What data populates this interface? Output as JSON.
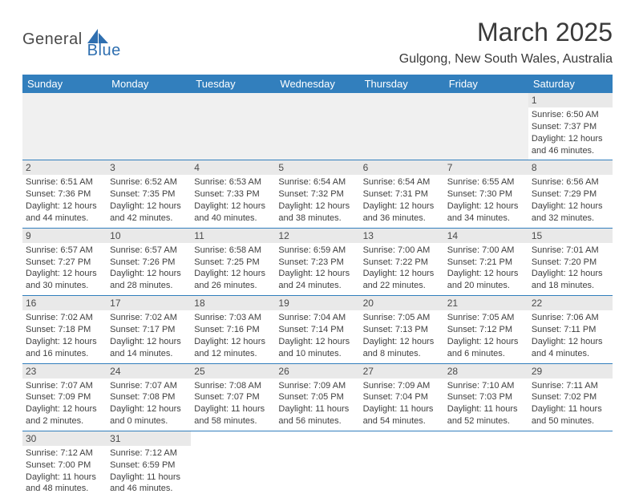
{
  "logo": {
    "t1": "General",
    "t2": "Blue"
  },
  "title": "March 2025",
  "location": "Gulgong, New South Wales, Australia",
  "colors": {
    "accent": "#327fbd",
    "band": "#e9e9e9",
    "blank": "#f0f0f0"
  },
  "dayHeaders": [
    "Sunday",
    "Monday",
    "Tuesday",
    "Wednesday",
    "Thursday",
    "Friday",
    "Saturday"
  ],
  "weeks": [
    [
      null,
      null,
      null,
      null,
      null,
      null,
      {
        "n": "1",
        "sr": "Sunrise: 6:50 AM",
        "ss": "Sunset: 7:37 PM",
        "d1": "Daylight: 12 hours",
        "d2": "and 46 minutes."
      }
    ],
    [
      {
        "n": "2",
        "sr": "Sunrise: 6:51 AM",
        "ss": "Sunset: 7:36 PM",
        "d1": "Daylight: 12 hours",
        "d2": "and 44 minutes."
      },
      {
        "n": "3",
        "sr": "Sunrise: 6:52 AM",
        "ss": "Sunset: 7:35 PM",
        "d1": "Daylight: 12 hours",
        "d2": "and 42 minutes."
      },
      {
        "n": "4",
        "sr": "Sunrise: 6:53 AM",
        "ss": "Sunset: 7:33 PM",
        "d1": "Daylight: 12 hours",
        "d2": "and 40 minutes."
      },
      {
        "n": "5",
        "sr": "Sunrise: 6:54 AM",
        "ss": "Sunset: 7:32 PM",
        "d1": "Daylight: 12 hours",
        "d2": "and 38 minutes."
      },
      {
        "n": "6",
        "sr": "Sunrise: 6:54 AM",
        "ss": "Sunset: 7:31 PM",
        "d1": "Daylight: 12 hours",
        "d2": "and 36 minutes."
      },
      {
        "n": "7",
        "sr": "Sunrise: 6:55 AM",
        "ss": "Sunset: 7:30 PM",
        "d1": "Daylight: 12 hours",
        "d2": "and 34 minutes."
      },
      {
        "n": "8",
        "sr": "Sunrise: 6:56 AM",
        "ss": "Sunset: 7:29 PM",
        "d1": "Daylight: 12 hours",
        "d2": "and 32 minutes."
      }
    ],
    [
      {
        "n": "9",
        "sr": "Sunrise: 6:57 AM",
        "ss": "Sunset: 7:27 PM",
        "d1": "Daylight: 12 hours",
        "d2": "and 30 minutes."
      },
      {
        "n": "10",
        "sr": "Sunrise: 6:57 AM",
        "ss": "Sunset: 7:26 PM",
        "d1": "Daylight: 12 hours",
        "d2": "and 28 minutes."
      },
      {
        "n": "11",
        "sr": "Sunrise: 6:58 AM",
        "ss": "Sunset: 7:25 PM",
        "d1": "Daylight: 12 hours",
        "d2": "and 26 minutes."
      },
      {
        "n": "12",
        "sr": "Sunrise: 6:59 AM",
        "ss": "Sunset: 7:23 PM",
        "d1": "Daylight: 12 hours",
        "d2": "and 24 minutes."
      },
      {
        "n": "13",
        "sr": "Sunrise: 7:00 AM",
        "ss": "Sunset: 7:22 PM",
        "d1": "Daylight: 12 hours",
        "d2": "and 22 minutes."
      },
      {
        "n": "14",
        "sr": "Sunrise: 7:00 AM",
        "ss": "Sunset: 7:21 PM",
        "d1": "Daylight: 12 hours",
        "d2": "and 20 minutes."
      },
      {
        "n": "15",
        "sr": "Sunrise: 7:01 AM",
        "ss": "Sunset: 7:20 PM",
        "d1": "Daylight: 12 hours",
        "d2": "and 18 minutes."
      }
    ],
    [
      {
        "n": "16",
        "sr": "Sunrise: 7:02 AM",
        "ss": "Sunset: 7:18 PM",
        "d1": "Daylight: 12 hours",
        "d2": "and 16 minutes."
      },
      {
        "n": "17",
        "sr": "Sunrise: 7:02 AM",
        "ss": "Sunset: 7:17 PM",
        "d1": "Daylight: 12 hours",
        "d2": "and 14 minutes."
      },
      {
        "n": "18",
        "sr": "Sunrise: 7:03 AM",
        "ss": "Sunset: 7:16 PM",
        "d1": "Daylight: 12 hours",
        "d2": "and 12 minutes."
      },
      {
        "n": "19",
        "sr": "Sunrise: 7:04 AM",
        "ss": "Sunset: 7:14 PM",
        "d1": "Daylight: 12 hours",
        "d2": "and 10 minutes."
      },
      {
        "n": "20",
        "sr": "Sunrise: 7:05 AM",
        "ss": "Sunset: 7:13 PM",
        "d1": "Daylight: 12 hours",
        "d2": "and 8 minutes."
      },
      {
        "n": "21",
        "sr": "Sunrise: 7:05 AM",
        "ss": "Sunset: 7:12 PM",
        "d1": "Daylight: 12 hours",
        "d2": "and 6 minutes."
      },
      {
        "n": "22",
        "sr": "Sunrise: 7:06 AM",
        "ss": "Sunset: 7:11 PM",
        "d1": "Daylight: 12 hours",
        "d2": "and 4 minutes."
      }
    ],
    [
      {
        "n": "23",
        "sr": "Sunrise: 7:07 AM",
        "ss": "Sunset: 7:09 PM",
        "d1": "Daylight: 12 hours",
        "d2": "and 2 minutes."
      },
      {
        "n": "24",
        "sr": "Sunrise: 7:07 AM",
        "ss": "Sunset: 7:08 PM",
        "d1": "Daylight: 12 hours",
        "d2": "and 0 minutes."
      },
      {
        "n": "25",
        "sr": "Sunrise: 7:08 AM",
        "ss": "Sunset: 7:07 PM",
        "d1": "Daylight: 11 hours",
        "d2": "and 58 minutes."
      },
      {
        "n": "26",
        "sr": "Sunrise: 7:09 AM",
        "ss": "Sunset: 7:05 PM",
        "d1": "Daylight: 11 hours",
        "d2": "and 56 minutes."
      },
      {
        "n": "27",
        "sr": "Sunrise: 7:09 AM",
        "ss": "Sunset: 7:04 PM",
        "d1": "Daylight: 11 hours",
        "d2": "and 54 minutes."
      },
      {
        "n": "28",
        "sr": "Sunrise: 7:10 AM",
        "ss": "Sunset: 7:03 PM",
        "d1": "Daylight: 11 hours",
        "d2": "and 52 minutes."
      },
      {
        "n": "29",
        "sr": "Sunrise: 7:11 AM",
        "ss": "Sunset: 7:02 PM",
        "d1": "Daylight: 11 hours",
        "d2": "and 50 minutes."
      }
    ],
    [
      {
        "n": "30",
        "sr": "Sunrise: 7:12 AM",
        "ss": "Sunset: 7:00 PM",
        "d1": "Daylight: 11 hours",
        "d2": "and 48 minutes."
      },
      {
        "n": "31",
        "sr": "Sunrise: 7:12 AM",
        "ss": "Sunset: 6:59 PM",
        "d1": "Daylight: 11 hours",
        "d2": "and 46 minutes."
      },
      null,
      null,
      null,
      null,
      null
    ]
  ]
}
